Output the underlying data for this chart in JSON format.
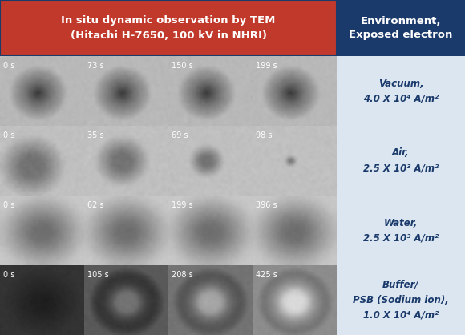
{
  "title_left": "In situ dynamic observation by TEM\n(Hitachi H-7650, 100 kV in NHRI)",
  "title_right": "Environment,\nExposed electron",
  "title_left_bg": "#c0392b",
  "title_right_bg": "#1a3a6b",
  "title_text_color": "#ffffff",
  "row_labels": [
    "Vacuum,\n4.0 X 10⁴ A/m²",
    "Air,\n2.5 X 10³ A/m²",
    "Water,\n2.5 X 10³ A/m²",
    "Buffer/\nPSB (Sodium ion),\n1.0 X 10⁴ A/m²"
  ],
  "col_times": [
    [
      "0 s",
      "73 s",
      "150 s",
      "199 s"
    ],
    [
      "0 s",
      "35 s",
      "69 s",
      "98 s"
    ],
    [
      "0 s",
      "62 s",
      "199 s",
      "396 s"
    ],
    [
      "0 s",
      "105 s",
      "208 s",
      "425 s"
    ]
  ],
  "right_panel_bg": "#dce6f0",
  "right_panel_border": "#1a3a6b",
  "grid_line_color": "#1a3a6b",
  "label_text_color": "#1a3a6b",
  "time_text_color": "#ffffff",
  "figsize": [
    5.8,
    4.18
  ],
  "dpi": 100
}
